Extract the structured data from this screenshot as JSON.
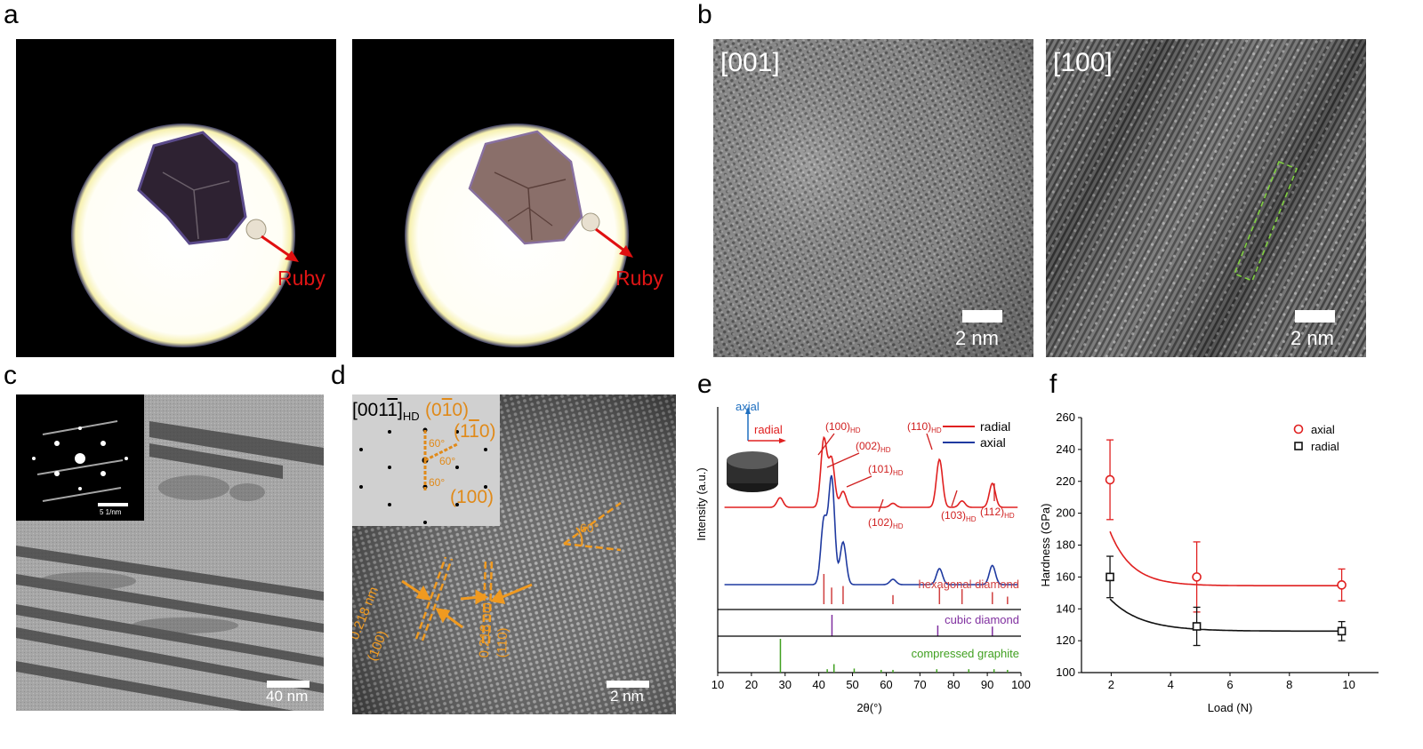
{
  "panels": {
    "a": {
      "label": "a",
      "annotation": "Ruby"
    },
    "b": {
      "label": "b",
      "zone_left": "[001]",
      "zone_right": "[100]",
      "scale_left": "2 nm",
      "scale_right": "2 nm"
    },
    "c": {
      "label": "c",
      "inset_scale": "5 1/nm",
      "scale": "40 nm"
    },
    "d": {
      "label": "d",
      "zone_main": "[001",
      "zone_bar_digit": "1",
      "zone_bracket": "]",
      "zone_sub": "HD",
      "spots": {
        "s010_open": "(0",
        "s010_bar": "1",
        "s010_close": "0)",
        "s110_open": "(1",
        "s110_bar": "1",
        "s110_close": "0)",
        "s100": "(100)"
      },
      "angles": [
        "60°",
        "60°",
        "60°"
      ],
      "main_angle": "60°",
      "d_spacing_left": "0.218 nm",
      "plane_left": "(100)",
      "d_spacing_right": "0.218 nm",
      "plane_right": "(110)",
      "scale": "2 nm"
    },
    "e": {
      "label": "e"
    },
    "f": {
      "label": "f"
    }
  },
  "chart_data": [
    {
      "type": "line",
      "panel": "e",
      "xlabel": "2θ(°)",
      "ylabel": "Intensity (a.u.)",
      "xlim": [
        10,
        100
      ],
      "xticks": [
        10,
        20,
        30,
        40,
        50,
        60,
        70,
        80,
        90,
        100
      ],
      "legend": {
        "placement": "top-right",
        "entries": [
          {
            "name": "radial",
            "color": "#e02020"
          },
          {
            "name": "axial",
            "color": "#1f3aa0"
          }
        ]
      },
      "inset_labels": {
        "axial": "axial",
        "radial": "radial"
      },
      "series": [
        {
          "name": "radial",
          "color": "#e02020",
          "peaks": [
            {
              "x": 28.5,
              "h": 0.12
            },
            {
              "x": 41.5,
              "h": 0.85
            },
            {
              "x": 43.8,
              "h": 0.6
            },
            {
              "x": 47.2,
              "h": 0.2
            },
            {
              "x": 62,
              "h": 0.05
            },
            {
              "x": 75.8,
              "h": 0.6
            },
            {
              "x": 82.5,
              "h": 0.08
            },
            {
              "x": 91.5,
              "h": 0.3
            }
          ]
        },
        {
          "name": "axial",
          "color": "#1f3aa0",
          "peaks": [
            {
              "x": 41.5,
              "h": 0.6
            },
            {
              "x": 43.8,
              "h": 1.0
            },
            {
              "x": 47.2,
              "h": 0.4
            },
            {
              "x": 62,
              "h": 0.05
            },
            {
              "x": 75.8,
              "h": 0.15
            },
            {
              "x": 91.5,
              "h": 0.18
            }
          ]
        }
      ],
      "peak_labels": [
        {
          "text": "(100)",
          "sub": "HD"
        },
        {
          "text": "(002)",
          "sub": "HD"
        },
        {
          "text": "(101)",
          "sub": "HD"
        },
        {
          "text": "(110)",
          "sub": "HD"
        },
        {
          "text": "(102)",
          "sub": "HD"
        },
        {
          "text": "(103)",
          "sub": "HD"
        },
        {
          "text": "(112)",
          "sub": "HD"
        }
      ],
      "references": [
        {
          "name": "hexagonal diamond",
          "color": "#d04040",
          "lines": [
            {
              "x": 41.5,
              "h": 1.0
            },
            {
              "x": 43.8,
              "h": 0.55
            },
            {
              "x": 47.2,
              "h": 0.6
            },
            {
              "x": 62,
              "h": 0.3
            },
            {
              "x": 75.8,
              "h": 0.55
            },
            {
              "x": 82.5,
              "h": 0.5
            },
            {
              "x": 91.5,
              "h": 0.4
            },
            {
              "x": 96,
              "h": 0.25
            }
          ]
        },
        {
          "name": "cubic diamond",
          "color": "#8030a0",
          "lines": [
            {
              "x": 43.9,
              "h": 1.0
            },
            {
              "x": 75.3,
              "h": 0.5
            },
            {
              "x": 91.5,
              "h": 0.45
            }
          ]
        },
        {
          "name": "compressed graphite",
          "color": "#40a020",
          "lines": [
            {
              "x": 28.6,
              "h": 1.0
            },
            {
              "x": 42.5,
              "h": 0.1
            },
            {
              "x": 44.5,
              "h": 0.25
            },
            {
              "x": 50.5,
              "h": 0.12
            },
            {
              "x": 58.5,
              "h": 0.08
            },
            {
              "x": 62,
              "h": 0.08
            },
            {
              "x": 75,
              "h": 0.1
            },
            {
              "x": 84.5,
              "h": 0.1
            },
            {
              "x": 92,
              "h": 0.1
            },
            {
              "x": 96,
              "h": 0.08
            }
          ]
        }
      ]
    },
    {
      "type": "scatter",
      "panel": "f",
      "xlabel": "Load (N)",
      "ylabel": "Hardness (GPa)",
      "xlim": [
        1,
        11
      ],
      "ylim": [
        100,
        260
      ],
      "xticks": [
        2,
        4,
        6,
        8,
        10
      ],
      "yticks": [
        100,
        120,
        140,
        160,
        180,
        200,
        220,
        240,
        260
      ],
      "legend": {
        "placement": "top-right"
      },
      "series": [
        {
          "name": "axial",
          "color": "#e02020",
          "marker": "circle",
          "x": [
            1.96,
            4.88,
            9.76
          ],
          "y": [
            221,
            160,
            155
          ],
          "err": [
            25,
            22,
            10
          ],
          "fit": {
            "a": 154.5,
            "b": 480,
            "k": 1.35
          }
        },
        {
          "name": "radial",
          "color": "#111111",
          "marker": "square",
          "x": [
            1.96,
            4.88,
            9.76
          ],
          "y": [
            160,
            129,
            126
          ],
          "err": [
            13,
            12,
            6
          ],
          "fit": {
            "a": 126,
            "b": 130,
            "k": 0.95
          }
        }
      ]
    }
  ]
}
